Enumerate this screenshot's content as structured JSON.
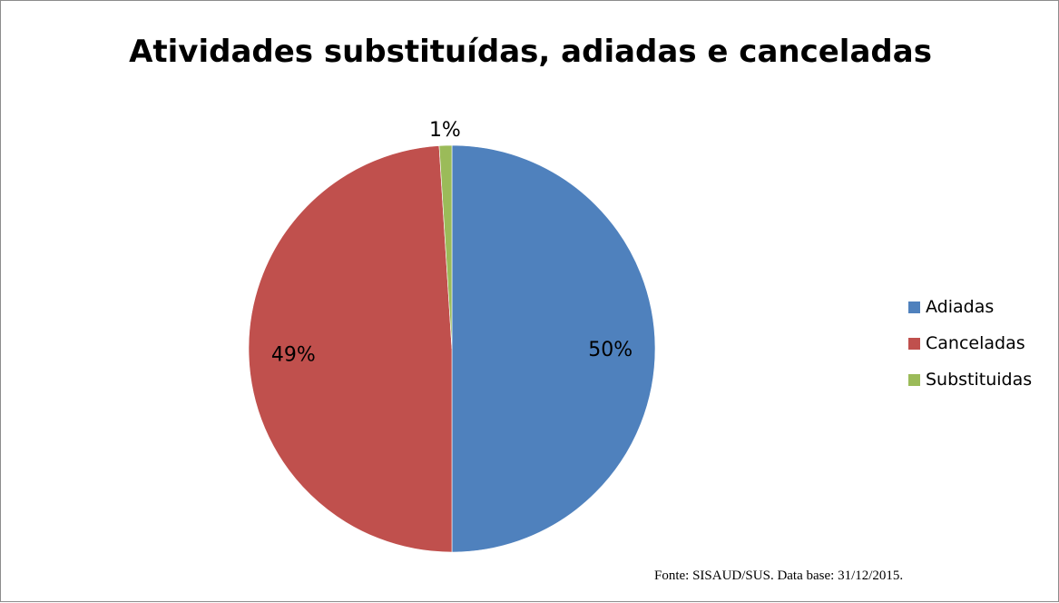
{
  "source_note": "Fonte: SISAUD/SUS. Data base: 31/12/2015.",
  "chart_data": {
    "type": "pie",
    "title": "Atividades substituídas, adiadas e canceladas",
    "categories": [
      "Adiadas",
      "Canceladas",
      "Substituidas"
    ],
    "values": [
      50,
      49,
      1
    ],
    "labels": [
      "50%",
      "49%",
      "1%"
    ],
    "colors": [
      "#4f81bd",
      "#c0504d",
      "#9bbb59"
    ],
    "start_angle_deg": 0,
    "direction": "clockwise",
    "legend_position": "right"
  }
}
